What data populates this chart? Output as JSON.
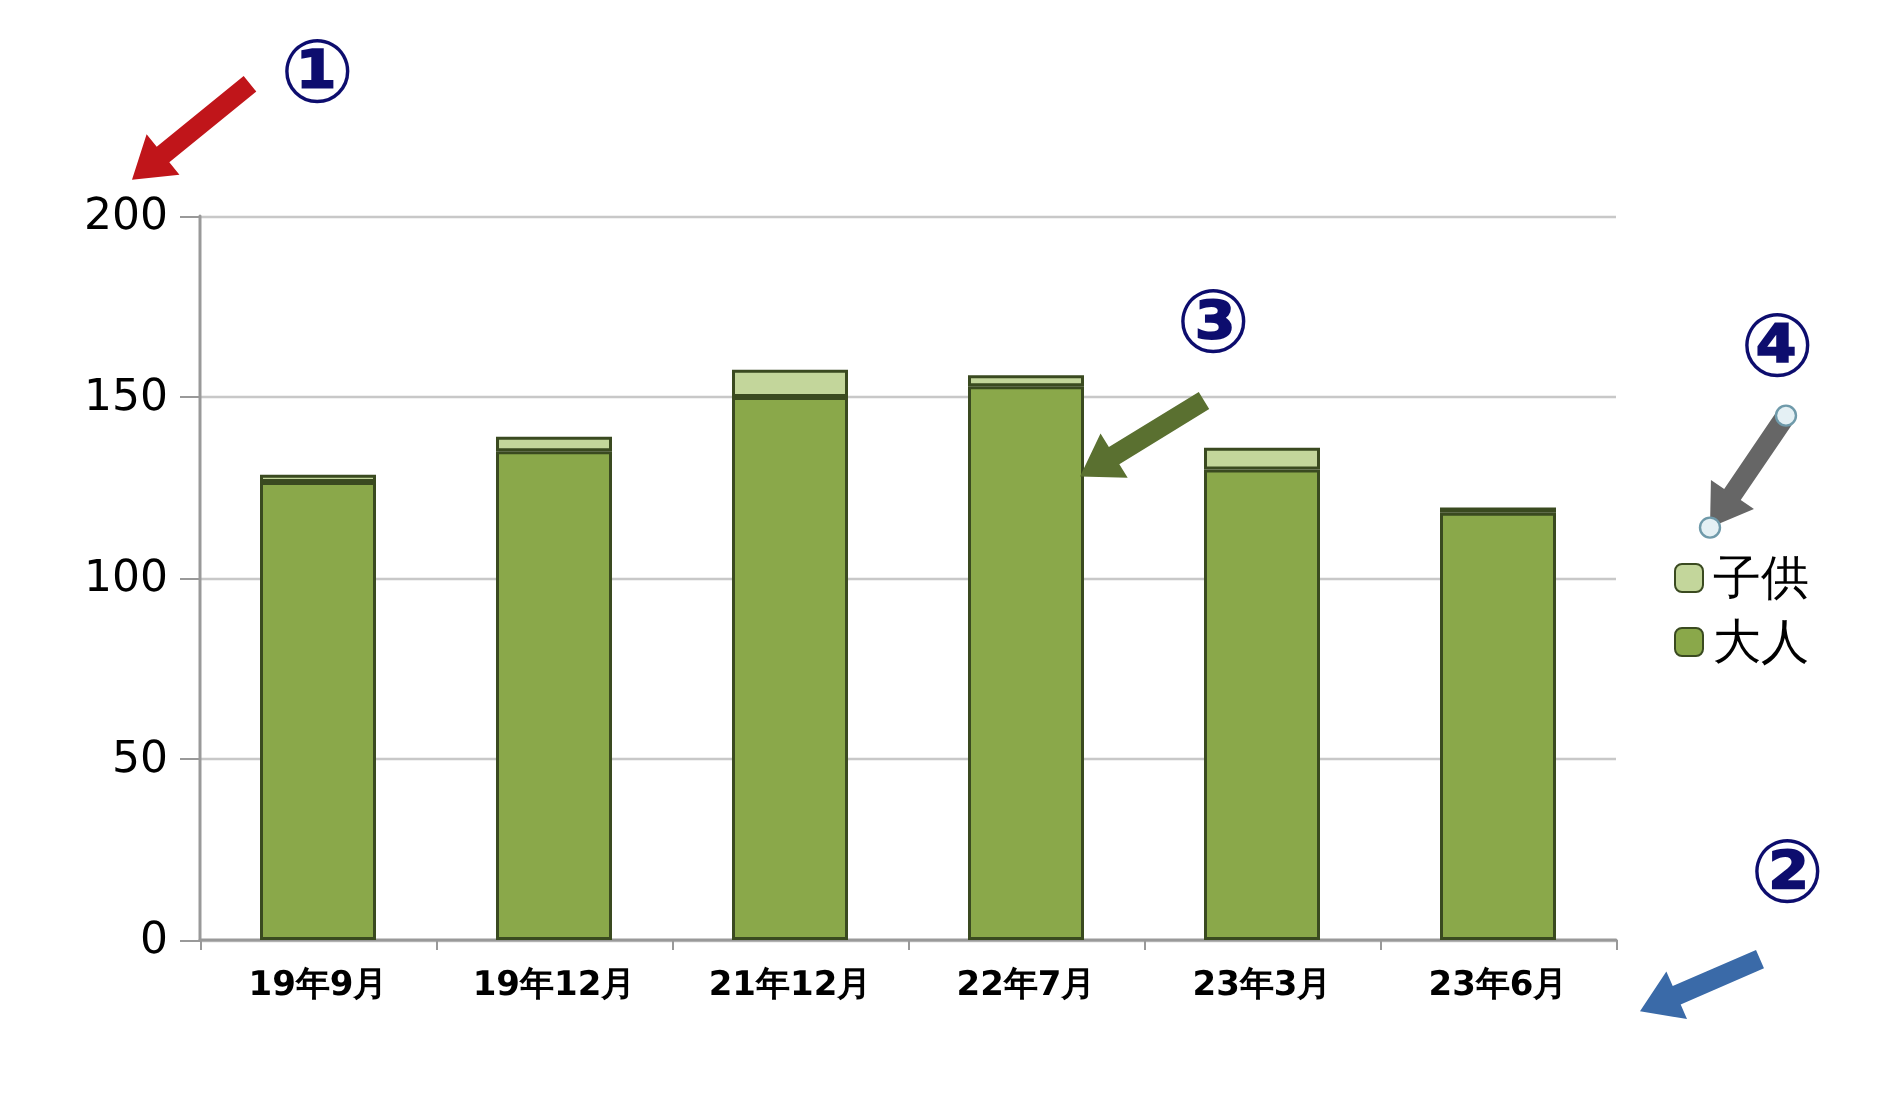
{
  "chart_data": {
    "type": "bar",
    "stacked": true,
    "categories": [
      "19年9月",
      "19年12月",
      "21年12月",
      "22年7月",
      "23年3月",
      "23年6月"
    ],
    "series": [
      {
        "name": "大人",
        "color": "#8aa84a",
        "values": [
          126.5,
          135,
          150,
          153,
          130,
          118
        ]
      },
      {
        "name": "子供",
        "color": "#c3d69b",
        "values": [
          2,
          4,
          7.5,
          3,
          6,
          1.5
        ]
      }
    ],
    "ylim": [
      0,
      200
    ],
    "yticks": [
      0,
      50,
      100,
      150,
      200
    ],
    "grid": "y",
    "legend": "right",
    "annotations": [
      "①",
      "②",
      "③",
      "④"
    ]
  }
}
